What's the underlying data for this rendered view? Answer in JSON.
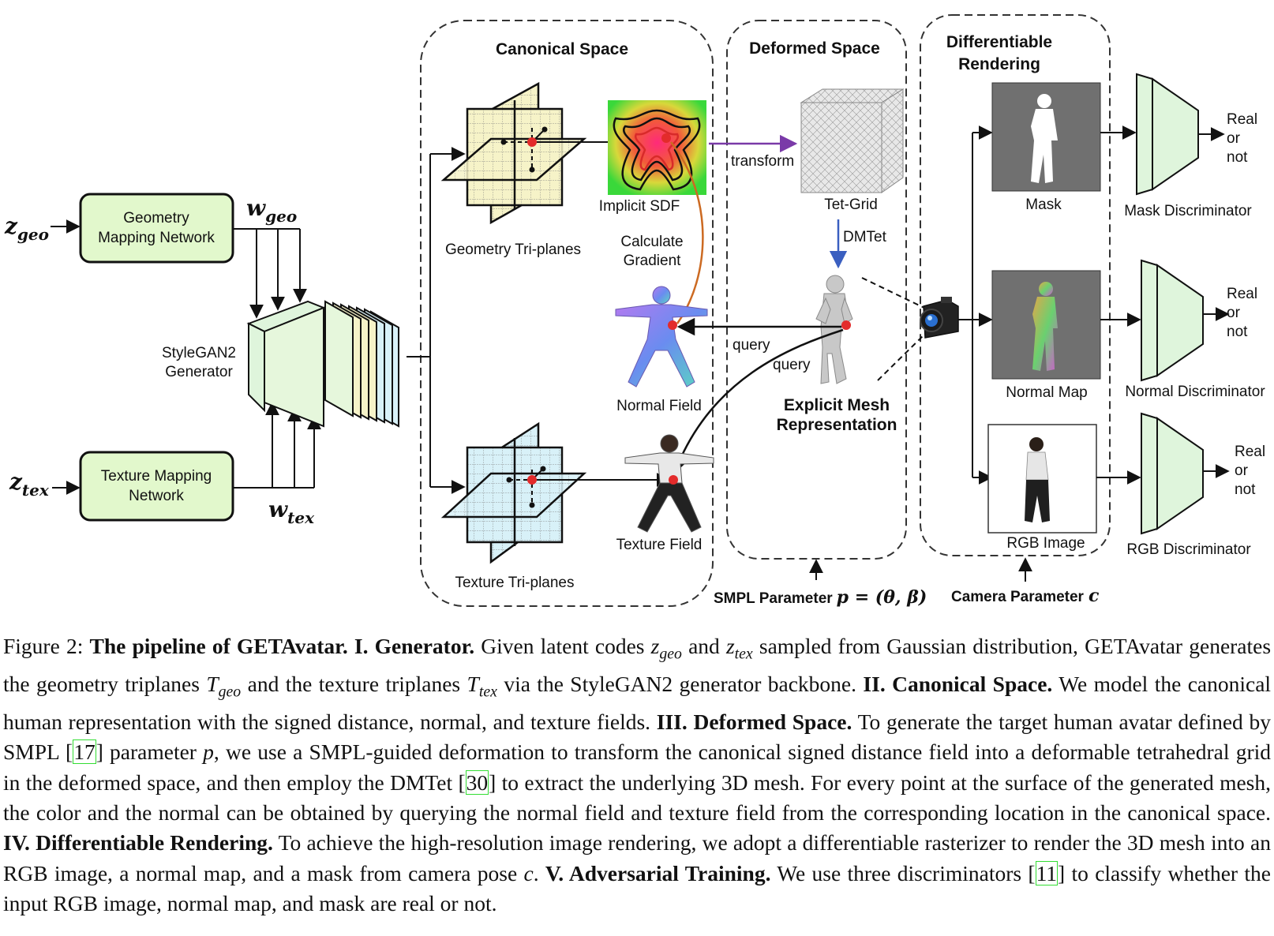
{
  "figure": {
    "inputs": {
      "z_geo": "z",
      "z_geo_sub": "geo",
      "z_tex": "z",
      "z_tex_sub": "tex",
      "w_geo": "w",
      "w_geo_sub": "geo",
      "w_tex": "w",
      "w_tex_sub": "tex"
    },
    "geometry_mapping": [
      "Geometry",
      "Mapping Network"
    ],
    "texture_mapping": [
      "Texture Mapping",
      "Network"
    ],
    "stylegan": [
      "StyleGAN2",
      "Generator"
    ],
    "canonical_space": {
      "title": "Canonical Space",
      "geometry_triplanes": "Geometry Tri-planes",
      "texture_triplanes": "Texture Tri-planes",
      "implicit_sdf": "Implicit SDF",
      "calculate_gradient": [
        "Calculate",
        "Gradient"
      ],
      "normal_field": "Normal Field",
      "texture_field": "Texture Field"
    },
    "deformed_space": {
      "title": "Deformed Space",
      "transform": "transform",
      "tet_grid": "Tet-Grid",
      "dmtet": "DMTet",
      "query_1": "query",
      "query_2": "query",
      "explicit_mesh": [
        "Explicit Mesh",
        "Representation"
      ]
    },
    "differentiable_rendering": {
      "title": [
        "Differentiable",
        "Rendering"
      ],
      "mask": "Mask",
      "normal_map": "Normal Map",
      "rgb_image": "RGB Image"
    },
    "discriminators": {
      "mask": "Mask Discriminator",
      "normal": "Normal Discriminator",
      "rgb": "RGB Discriminator",
      "output": [
        "Real",
        "or",
        "not"
      ]
    },
    "smpl_parameter": "SMPL Parameter",
    "smpl_formula": "p = (θ, β)",
    "camera_parameter": "Camera Parameter",
    "camera_symbol": "c",
    "colors": {
      "mapping_fill": "#e2f8cc",
      "discriminator_fill": "#dff5dc",
      "geo_plane": "#f6f3c8",
      "tex_plane": "#d8f1f8",
      "transform_arrow": "#7a3aa8",
      "gradient_arrow": "#cc6a22",
      "dmtet_arrow": "#3a5fc0",
      "point": "#e32b2b"
    }
  },
  "caption": {
    "figure_label": "Figure 2:",
    "title": "The pipeline of GETAvatar.",
    "s1_head": "I. Generator.",
    "s1_a": "Given latent codes",
    "s1_b": "and",
    "s1_c": "sampled from Gaussian distribution, GETAvatar generates the geometry triplanes",
    "s1_d": "and the texture triplanes",
    "s1_e": "via the StyleGAN2 generator backbone.",
    "s2_head": "II. Canonical Space.",
    "s2_text": "We model the canonical human representation with the signed distance, normal, and texture fields.",
    "s3_head": "III. Deformed Space.",
    "s3_a": "To generate the target human avatar defined by SMPL [",
    "cite_17": "17",
    "s3_b": "] parameter",
    "s3_p": "p",
    "s3_c": ", we use a SMPL-guided deformation to transform the canonical signed distance field into a deformable tetrahedral grid in the deformed space, and then employ the DMTet [",
    "cite_30": "30",
    "s3_d": "] to extract the underlying 3D mesh. For every point at the surface of the generated mesh, the color and the normal can be obtained by querying the normal field and texture field from the corresponding location in the canonical space.",
    "s4_head": "IV. Differentiable Rendering.",
    "s4_a": "To achieve the high-resolution image rendering, we adopt a differentiable rasterizer to render the 3D mesh into an RGB image, a normal map, and a mask from camera pose",
    "s4_c": "c",
    "s4_b": ".",
    "s5_head": "V. Adversarial Training.",
    "s5_a": "We use three discriminators [",
    "cite_11": "11",
    "s5_b": "] to classify whether the input RGB image, normal map, and mask are real or not.",
    "m_z": "z",
    "m_geo": "geo",
    "m_tex": "tex",
    "m_T": "T"
  }
}
